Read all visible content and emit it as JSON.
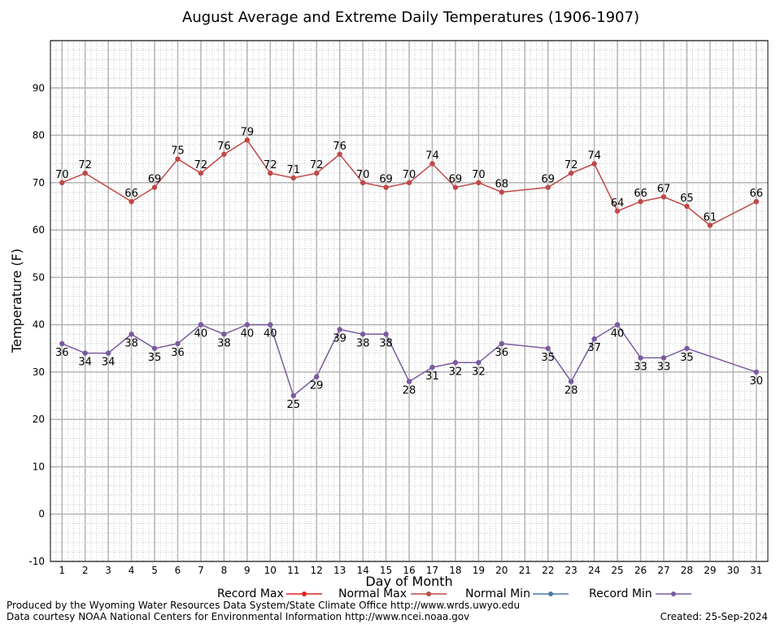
{
  "chart_data": {
    "type": "line",
    "title": "August Average and Extreme Daily Temperatures (1906-1907)",
    "xlabel": "Day of Month",
    "ylabel": "Temperature (F)",
    "xlim": [
      0.5,
      31.5
    ],
    "ylim": [
      -10,
      100
    ],
    "x_ticks": [
      1,
      2,
      3,
      4,
      5,
      6,
      7,
      8,
      9,
      10,
      11,
      12,
      13,
      14,
      15,
      16,
      17,
      18,
      19,
      20,
      21,
      22,
      23,
      24,
      25,
      26,
      27,
      28,
      29,
      30,
      31
    ],
    "y_ticks": [
      -10,
      0,
      10,
      20,
      30,
      40,
      50,
      60,
      70,
      80,
      90
    ],
    "grid": true,
    "legend_position": "bottom",
    "legend": [
      "Record Max",
      "Normal Max",
      "Normal Min",
      "Record Min"
    ],
    "colors": {
      "record_max": "#e02020",
      "normal_max": "#c04848",
      "normal_min": "#4878a8",
      "record_min": "#7a5a9e"
    },
    "series": [
      {
        "name": "Normal Max",
        "color": "#c04848",
        "label_position": "above",
        "x": [
          1,
          2,
          4,
          5,
          6,
          7,
          8,
          9,
          10,
          11,
          12,
          13,
          14,
          15,
          16,
          17,
          18,
          19,
          20,
          22,
          23,
          24,
          25,
          26,
          27,
          28,
          29,
          31
        ],
        "values": [
          70,
          72,
          66,
          69,
          75,
          72,
          76,
          79,
          72,
          71,
          72,
          76,
          70,
          69,
          70,
          74,
          69,
          70,
          68,
          69,
          72,
          74,
          64,
          66,
          67,
          65,
          61,
          66
        ]
      },
      {
        "name": "Record Min",
        "color": "#7a5a9e",
        "label_position": "below",
        "x": [
          1,
          2,
          3,
          4,
          5,
          6,
          7,
          8,
          9,
          10,
          11,
          12,
          13,
          14,
          15,
          16,
          17,
          18,
          19,
          20,
          22,
          23,
          24,
          25,
          26,
          27,
          28,
          31
        ],
        "values": [
          36,
          34,
          34,
          38,
          35,
          36,
          40,
          38,
          40,
          40,
          25,
          29,
          39,
          38,
          38,
          28,
          31,
          32,
          32,
          36,
          35,
          28,
          37,
          40,
          33,
          33,
          35,
          30
        ]
      }
    ]
  },
  "footer": {
    "produced_by": "Produced by the Wyoming Water Resources Data System/State Climate Office http://www.wrds.uwyo.edu",
    "data_courtesy": "Data courtesy NOAA National Centers for Environmental Information http://www.ncei.noaa.gov",
    "created": "Created: 25-Sep-2024"
  }
}
